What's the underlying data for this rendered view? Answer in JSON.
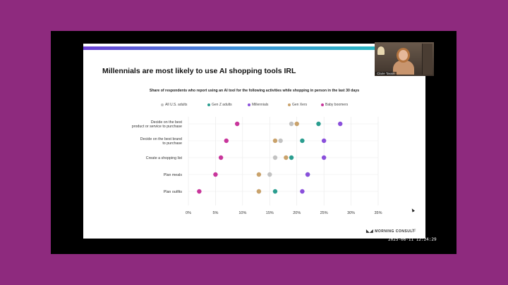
{
  "slide": {
    "title": "Millennials are most likely to use AI shopping tools IRL",
    "page_number": "22",
    "footer_brand": "MORNING CONSULT"
  },
  "video": {
    "participant_name": "Claire Tassin",
    "timestamp": "2025-06-11 12:24:29"
  },
  "icons": {
    "brand_logo": "morning-consult-logo-icon",
    "cursor": "mouse-cursor-icon"
  },
  "chart_data": {
    "type": "scatter",
    "title": "Share of respondents who report using an AI tool for the following activities while shopping in person in the last 30 days",
    "categories": [
      "Decide on the best product or service to purchase",
      "Decide on the best brand to purchase",
      "Create a shopping list",
      "Plan meals",
      "Plan outfits"
    ],
    "series": [
      {
        "name": "All U.S. adults",
        "color": "#c2c2c2",
        "values": [
          19,
          17,
          16,
          15,
          13
        ]
      },
      {
        "name": "Gen Z adults",
        "color": "#2a9d8f",
        "values": [
          24,
          21,
          19,
          22,
          16
        ]
      },
      {
        "name": "Millennials",
        "color": "#8a4fdb",
        "values": [
          28,
          25,
          25,
          22,
          21
        ]
      },
      {
        "name": "Gen Xers",
        "color": "#c9a26b",
        "values": [
          20,
          16,
          18,
          13,
          13
        ]
      },
      {
        "name": "Baby boomers",
        "color": "#c8359b",
        "values": [
          9,
          7,
          6,
          5,
          2
        ]
      }
    ],
    "xlim": [
      0,
      35
    ],
    "x_ticks": [
      "0%",
      "5%",
      "10%",
      "15%",
      "20%",
      "25%",
      "30%",
      "35%"
    ],
    "grid": true,
    "legend_position": "top"
  }
}
